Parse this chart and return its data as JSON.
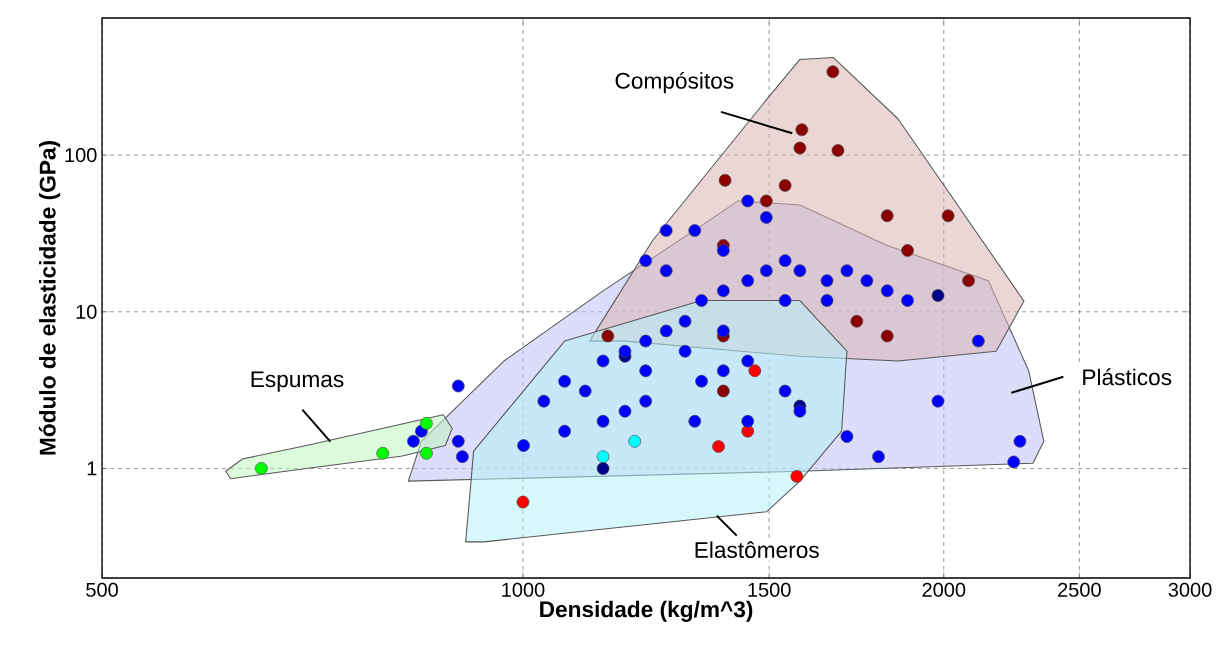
{
  "chart_data": {
    "type": "scatter",
    "xlabel": "Densidade (kg/m^3)",
    "ylabel": "Módulo de elasticidade (GPa)",
    "log": "xy",
    "xlim": [
      500,
      3000
    ],
    "ylim": [
      0.2,
      750
    ],
    "xticks": [
      500,
      1000,
      1500,
      2000,
      2500,
      3000
    ],
    "yticks": [
      1,
      10,
      100
    ],
    "grid": true,
    "series": [
      {
        "name": "Plásticos",
        "type": "area",
        "color": "#c0c0f8",
        "x": [
          828,
          846,
          969,
          1141,
          1342,
          1425,
          1578,
          1822,
          2152,
          2300,
          2358,
          2316,
          1578
        ],
        "values": [
          0.83,
          1.49,
          4.85,
          13.6,
          35.5,
          51,
          48,
          26.5,
          15.8,
          4.2,
          1.49,
          1.08,
          0.96
        ]
      },
      {
        "name": "Compósitos",
        "type": "area",
        "color": "#dbb4b4",
        "x": [
          1116,
          1238,
          1493,
          1578,
          1667,
          1855,
          2282,
          2180,
          1855,
          1578,
          1183
        ],
        "values": [
          6.5,
          28.5,
          225,
          408,
          420,
          170,
          11.7,
          5.6,
          4.85,
          5.2,
          6.5
        ]
      },
      {
        "name": "Elastômeros",
        "type": "area",
        "color": "#b4f2f8",
        "x": [
          910,
          922,
          1071,
          1342,
          1578,
          1705,
          1690,
          1578,
          1494,
          938
        ],
        "values": [
          0.34,
          1.29,
          6.5,
          11.8,
          11.8,
          5.6,
          1.73,
          0.83,
          0.53,
          0.34
        ]
      },
      {
        "name": "Espumas",
        "type": "area",
        "color": "#bff5bf",
        "x": [
          613,
          630,
          700,
          877,
          890,
          880,
          820,
          700,
          618
        ],
        "values": [
          0.96,
          1.15,
          1.4,
          2.2,
          1.8,
          1.4,
          1.2,
          1.0,
          0.86
        ]
      },
      {
        "color": "#00ffff",
        "x": [
          1141,
          1202
        ],
        "values": [
          1.19,
          1.49
        ]
      },
      {
        "color": "#ff0000",
        "x": [
          1000,
          1570,
          1448,
          1380,
          1465
        ],
        "values": [
          0.61,
          0.89,
          1.73,
          1.38,
          4.2
        ]
      },
      {
        "color": "#8b0000",
        "x": [
          1666,
          1583,
          1578,
          1680,
          1395,
          1540,
          1493,
          1822,
          2014,
          1884,
          2083,
          1391,
          1391,
          1733,
          1822,
          1391,
          1150
        ],
        "values": [
          340,
          145,
          111,
          107,
          69,
          64,
          51,
          41,
          41,
          24.6,
          15.8,
          26.5,
          7,
          8.7,
          7,
          3.12,
          7
        ]
      },
      {
        "color": "#00008b",
        "x": [
          1141,
          1578,
          1981,
          1183
        ],
        "values": [
          1.0,
          2.5,
          12.7,
          5.2
        ]
      },
      {
        "color": "#0000ff",
        "x": [
          905,
          899,
          835,
          846,
          899,
          1035,
          1071,
          1141,
          1183,
          1224,
          1266,
          1306,
          1342,
          1391,
          1448,
          1493,
          1540,
          1578,
          1650,
          1705,
          1762,
          1822,
          1884,
          1141,
          1183,
          1224,
          1327,
          1342,
          1391,
          1448,
          1448,
          1224,
          1266,
          1266,
          1327,
          1391,
          1448,
          1493,
          1981,
          2117,
          2267,
          2244,
          1796,
          1705,
          1001,
          1071,
          1108,
          1224,
          1306,
          1391,
          1540,
          1650,
          1540,
          1578
        ],
        "values": [
          1.19,
          1.49,
          1.49,
          1.73,
          3.36,
          2.69,
          3.6,
          4.85,
          5.6,
          6.5,
          7.55,
          8.7,
          11.8,
          13.6,
          15.8,
          18.3,
          21.2,
          18.3,
          15.8,
          18.3,
          15.8,
          13.6,
          11.8,
          2.0,
          2.32,
          2.69,
          2.0,
          3.6,
          4.2,
          4.85,
          2.0,
          21.2,
          18.3,
          33,
          33,
          24.6,
          51,
          40,
          2.69,
          6.5,
          1.49,
          1.1,
          1.19,
          1.6,
          1.4,
          1.73,
          3.12,
          4.2,
          5.6,
          7.55,
          11.8,
          11.8,
          3.12,
          2.32
        ]
      },
      {
        "color": "#00ff00",
        "x": [
          650,
          794,
          853,
          853
        ],
        "values": [
          1,
          1.25,
          1.94,
          1.25
        ]
      }
    ]
  }
}
